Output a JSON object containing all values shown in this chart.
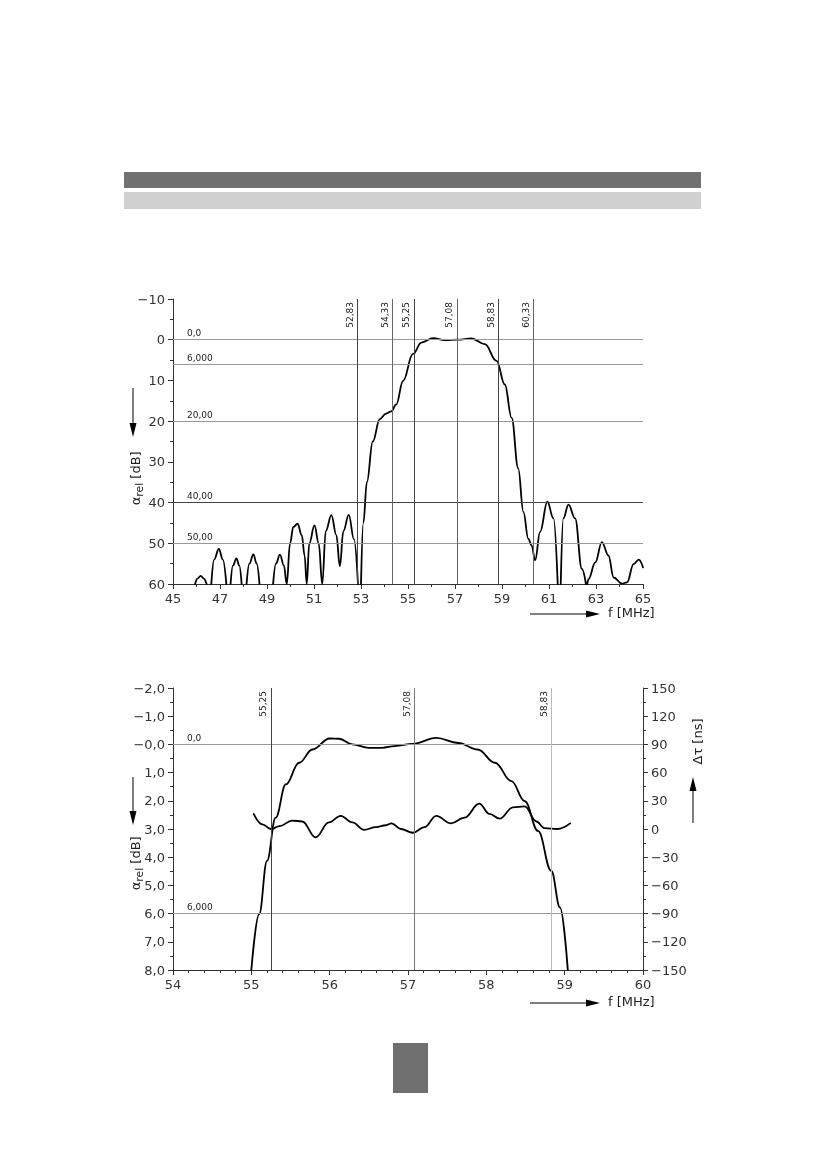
{
  "chart_data": [
    {
      "type": "line",
      "xlabel": "f [MHz]",
      "ylabel": "α$_{rel}$ [dB]",
      "xlim": [
        45,
        65
      ],
      "xticks": [
        45,
        47,
        49,
        51,
        53,
        55,
        57,
        59,
        61,
        63,
        65
      ],
      "ylim": [
        60,
        -10
      ],
      "yticks": [
        {
          "value": -10,
          "label": "−10"
        },
        0,
        10,
        20,
        30,
        40,
        50,
        60
      ],
      "grid": false,
      "marker": "none",
      "line_style": "solid",
      "series": [
        {
          "color": "#000000",
          "x": [
            45.94,
            46.05,
            46.18,
            46.3,
            46.43,
            46.53,
            46.63,
            46.75,
            46.95,
            47.12,
            47.27,
            47.36,
            47.45,
            47.55,
            47.7,
            47.82,
            47.92,
            48.02,
            48.13,
            48.25,
            48.42,
            48.56,
            48.68,
            48.97,
            49.26,
            49.38,
            49.55,
            49.72,
            49.84,
            49.98,
            50.12,
            50.3,
            50.48,
            50.6,
            50.69,
            50.8,
            51.02,
            51.2,
            51.35,
            51.5,
            51.74,
            51.95,
            52.1,
            52.25,
            52.48,
            52.7,
            52.87,
            52.93,
            53.0,
            53.1,
            53.25,
            53.5,
            53.8,
            54.05,
            54.29,
            54.5,
            54.79,
            55.21,
            55.57,
            56.07,
            56.56,
            57.13,
            57.7,
            58.27,
            58.77,
            59.12,
            59.41,
            59.69,
            59.91,
            60.12,
            60.26,
            60.41,
            60.62,
            60.93,
            61.19,
            61.37,
            61.45,
            61.5,
            61.61,
            61.83,
            62.11,
            62.4,
            62.57,
            62.6,
            62.63,
            62.68,
            62.97,
            63.25,
            63.53,
            63.75,
            64.1,
            64.32,
            64.6,
            64.82,
            65.0
          ],
          "values": [
            60,
            58.6,
            58.0,
            58.6,
            60,
            null,
            60,
            54,
            51.4,
            54,
            60,
            null,
            60,
            55.5,
            53.7,
            55.5,
            60,
            null,
            60,
            55,
            52.7,
            55,
            60,
            null,
            60,
            55,
            52.8,
            55.5,
            60,
            50,
            46,
            45.2,
            48,
            53,
            60,
            50,
            45.6,
            50,
            60,
            47,
            43.1,
            48,
            55.6,
            47,
            43.0,
            49,
            60,
            null,
            60,
            45,
            35,
            25,
            19.5,
            18.2,
            17.6,
            15.9,
            10.1,
            3.5,
            0.7,
            -0.4,
            0.1,
            0,
            -0.3,
            1.1,
            5.2,
            11.0,
            19.2,
            31.6,
            42.3,
            48.9,
            50.5,
            54.2,
            47.2,
            39.8,
            43.9,
            60,
            null,
            60,
            43.9,
            40.5,
            43.9,
            56.3,
            60,
            null,
            60,
            58.8,
            54.7,
            49.7,
            53.0,
            58.4,
            59.9,
            59.6,
            55.1,
            54.0,
            55.9
          ]
        }
      ],
      "ref_lines": [
        {
          "axis": "y",
          "value": 0,
          "label": "0,0",
          "color": "#999999"
        },
        {
          "axis": "y",
          "value": 6,
          "label": "6,000",
          "color": "#999999"
        },
        {
          "axis": "y",
          "value": 20,
          "label": "20,00",
          "color": "#999999"
        },
        {
          "axis": "y",
          "value": 40,
          "label": "40,00",
          "color": "#444444"
        },
        {
          "axis": "y",
          "value": 50,
          "label": "50,00",
          "color": "#999999"
        },
        {
          "axis": "x",
          "value": 52.83,
          "label": "52,83",
          "color": "#444444"
        },
        {
          "axis": "x",
          "value": 54.33,
          "label": "54,33",
          "color": "#666666"
        },
        {
          "axis": "x",
          "value": 55.25,
          "label": "55,25",
          "color": "#444444"
        },
        {
          "axis": "x",
          "value": 57.08,
          "label": "57,08",
          "color": "#666666"
        },
        {
          "axis": "x",
          "value": 58.83,
          "label": "58,83",
          "color": "#444444"
        },
        {
          "axis": "x",
          "value": 60.33,
          "label": "60,33",
          "color": "#666666"
        }
      ]
    },
    {
      "type": "line",
      "xlabel": "f [MHz]",
      "ylabel": "α$_{rel}$ [dB]",
      "y2label": "Δτ [ns]",
      "xlim": [
        54,
        60
      ],
      "xticks": [
        54,
        55,
        56,
        57,
        58,
        59,
        60
      ],
      "ylim": [
        8,
        -2
      ],
      "yticks": [
        {
          "value": -2,
          "label": "−2,0"
        },
        {
          "value": -1,
          "label": "−1,0"
        },
        {
          "value": 0,
          "label": "−0,0"
        },
        {
          "value": 1,
          "label": "1,0"
        },
        {
          "value": 2,
          "label": "2,0"
        },
        {
          "value": 3,
          "label": "3,0"
        },
        {
          "value": 4,
          "label": "4,0"
        },
        {
          "value": 5,
          "label": "5,0"
        },
        {
          "value": 6,
          "label": "6,0"
        },
        {
          "value": 7,
          "label": "7,0"
        },
        {
          "value": 8,
          "label": "8,0"
        }
      ],
      "y2lim": [
        -150,
        150
      ],
      "y2ticks": [
        {
          "value": -150,
          "label": "−150"
        },
        {
          "value": -120,
          "label": "−120"
        },
        {
          "value": -90,
          "label": "−90"
        },
        {
          "value": -60,
          "label": "−60"
        },
        {
          "value": -30,
          "label": "−30"
        },
        0,
        30,
        60,
        90,
        120,
        150
      ],
      "grid": false,
      "marker": "none",
      "line_style": "solid",
      "series": [
        {
          "color": "#000000",
          "x": [
            55.0,
            55.1,
            55.2,
            55.31,
            55.44,
            55.61,
            55.78,
            56.0,
            56.12,
            56.29,
            56.5,
            56.67,
            56.83,
            57.06,
            57.36,
            57.64,
            57.89,
            58.11,
            58.32,
            58.49,
            58.66,
            58.83,
            58.94,
            59.04
          ],
          "values": [
            8.0,
            6.02,
            4.13,
            2.6,
            1.42,
            0.65,
            0.18,
            -0.21,
            -0.2,
            0.0,
            0.12,
            0.12,
            0.06,
            -0.02,
            -0.23,
            -0.05,
            0.18,
            0.65,
            1.3,
            2.01,
            3.07,
            4.49,
            5.78,
            8.0
          ]
        },
        {
          "color": "#000000",
          "axis": "y2",
          "x": [
            55.03,
            55.14,
            55.25,
            55.36,
            55.52,
            55.65,
            55.82,
            55.99,
            56.14,
            56.29,
            56.44,
            56.59,
            56.72,
            56.79,
            56.91,
            57.06,
            57.21,
            57.36,
            57.55,
            57.72,
            57.91,
            58.04,
            58.17,
            58.34,
            58.49,
            58.64,
            58.74,
            58.91,
            59.07
          ],
          "values": [
            16,
            5,
            0,
            3,
            9,
            8,
            -9,
            7,
            14,
            7,
            -1,
            2,
            4,
            6,
            0,
            -4,
            2,
            14,
            6,
            12,
            27,
            16,
            11,
            23,
            24,
            8,
            1,
            0,
            6
          ]
        }
      ],
      "ref_lines": [
        {
          "axis": "y",
          "value": 0,
          "label": "0,0",
          "color": "#999999"
        },
        {
          "axis": "y",
          "value": 6,
          "label": "6,000",
          "color": "#999999"
        },
        {
          "axis": "x",
          "value": 55.25,
          "label": "55,25",
          "color": "#444444"
        },
        {
          "axis": "x",
          "value": 57.08,
          "label": "57,08",
          "color": "#777777"
        },
        {
          "axis": "x",
          "value": 58.83,
          "label": "58,83",
          "color": "#bbbbbb"
        }
      ]
    }
  ]
}
